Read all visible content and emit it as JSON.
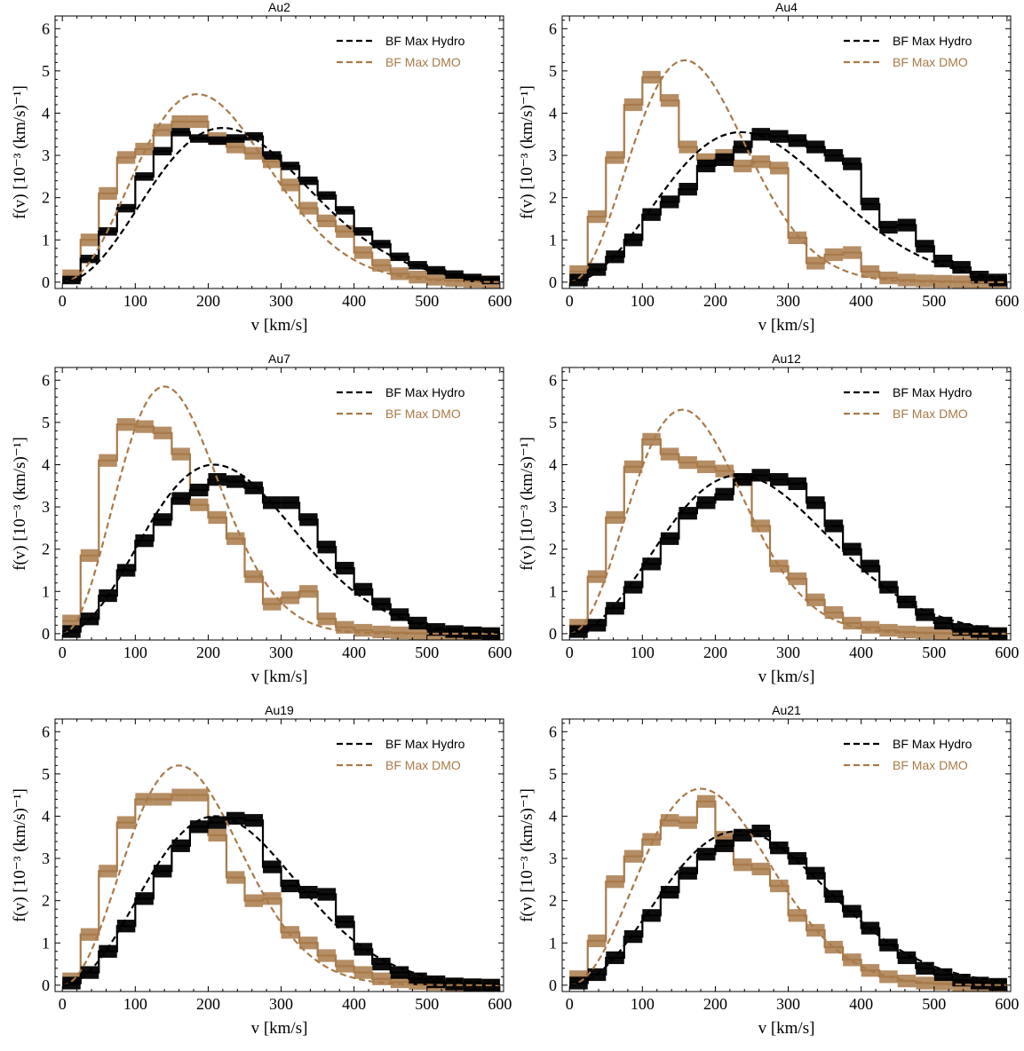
{
  "colors": {
    "hydro": "#000000",
    "dmo": "#a87a4a",
    "dmo_band": "#a87a4a",
    "frame": "#000000"
  },
  "legend": {
    "hydro_label": "BF Max Hydro",
    "dmo_label": "BF Max DMO",
    "placement": "top-right"
  },
  "axes": {
    "xlabel": "v [km/s]",
    "ylabel": "f(v) [10⁻³ (km/s)⁻¹]",
    "xlim": [
      -10,
      605
    ],
    "ylim": [
      -0.15,
      6.3
    ],
    "xticks": [
      0,
      100,
      200,
      300,
      400,
      500,
      600
    ],
    "yticks": [
      0,
      1,
      2,
      3,
      4,
      5,
      6
    ]
  },
  "chart_data": [
    {
      "type": "line",
      "title": "Au2",
      "bin_edges": [
        0,
        25,
        50,
        75,
        100,
        125,
        150,
        175,
        200,
        225,
        250,
        275,
        300,
        325,
        350,
        375,
        400,
        425,
        450,
        475,
        500,
        525,
        550,
        575,
        600
      ],
      "hydro_hist": [
        0.05,
        0.55,
        1.2,
        1.75,
        2.5,
        3.1,
        3.55,
        3.4,
        3.35,
        3.4,
        3.45,
        3.0,
        2.75,
        2.4,
        2.05,
        1.7,
        1.2,
        0.9,
        0.6,
        0.4,
        0.28,
        0.18,
        0.1,
        0.05
      ],
      "dmo_hist": [
        0.15,
        1.0,
        2.1,
        2.95,
        3.15,
        3.6,
        3.8,
        3.8,
        3.4,
        3.2,
        3.05,
        2.85,
        2.3,
        1.75,
        1.45,
        1.2,
        0.7,
        0.4,
        0.2,
        0.12,
        0.07,
        0.04,
        0.02,
        0.01
      ],
      "hydro_band": 0.2,
      "dmo_band": 0.3,
      "hydro_fit_peak_v": 220,
      "hydro_fit_peak_f": 3.65,
      "dmo_fit_peak_v": 185,
      "dmo_fit_peak_f": 4.45
    },
    {
      "type": "line",
      "title": "Au4",
      "bin_edges": [
        0,
        25,
        50,
        75,
        100,
        125,
        150,
        175,
        200,
        225,
        250,
        275,
        300,
        325,
        350,
        375,
        400,
        425,
        450,
        475,
        500,
        525,
        550,
        575,
        600
      ],
      "hydro_hist": [
        0.05,
        0.3,
        0.6,
        1.0,
        1.6,
        1.9,
        2.2,
        2.75,
        2.9,
        3.2,
        3.5,
        3.45,
        3.35,
        3.2,
        3.0,
        2.8,
        1.85,
        1.3,
        1.35,
        0.85,
        0.5,
        0.35,
        0.12,
        0.05
      ],
      "dmo_hist": [
        0.25,
        1.55,
        2.95,
        4.2,
        4.85,
        4.3,
        3.2,
        2.9,
        3.0,
        2.75,
        2.85,
        2.7,
        1.05,
        0.45,
        0.65,
        0.7,
        0.25,
        0.1,
        0.05,
        0.03,
        0.02,
        0.01,
        0.0,
        0.0
      ],
      "hydro_band": 0.3,
      "dmo_band": 0.3,
      "hydro_fit_peak_v": 235,
      "hydro_fit_peak_f": 3.55,
      "dmo_fit_peak_v": 158,
      "dmo_fit_peak_f": 5.25
    },
    {
      "type": "line",
      "title": "Au7",
      "bin_edges": [
        0,
        25,
        50,
        75,
        100,
        125,
        150,
        175,
        200,
        225,
        250,
        275,
        300,
        325,
        350,
        375,
        400,
        425,
        450,
        475,
        500,
        525,
        550,
        575,
        600
      ],
      "hydro_hist": [
        0.05,
        0.35,
        0.9,
        1.5,
        2.2,
        2.7,
        3.2,
        3.4,
        3.65,
        3.6,
        3.45,
        3.1,
        3.1,
        2.7,
        2.05,
        1.55,
        1.05,
        0.7,
        0.45,
        0.25,
        0.1,
        0.05,
        0.02,
        0.0
      ],
      "dmo_hist": [
        0.3,
        1.85,
        4.1,
        4.95,
        4.9,
        4.75,
        4.25,
        3.05,
        2.75,
        2.25,
        1.35,
        0.7,
        0.85,
        1.0,
        0.35,
        0.15,
        0.08,
        0.04,
        0.02,
        0.01,
        0.0,
        0.0,
        0.0,
        0.0
      ],
      "hydro_band": 0.3,
      "dmo_band": 0.3,
      "hydro_fit_peak_v": 208,
      "hydro_fit_peak_f": 4.0,
      "dmo_fit_peak_v": 140,
      "dmo_fit_peak_f": 5.85
    },
    {
      "type": "line",
      "title": "Au12",
      "bin_edges": [
        0,
        25,
        50,
        75,
        100,
        125,
        150,
        175,
        200,
        225,
        250,
        275,
        300,
        325,
        350,
        375,
        400,
        425,
        450,
        475,
        500,
        525,
        550,
        575,
        600
      ],
      "hydro_hist": [
        0.05,
        0.2,
        0.6,
        1.1,
        1.65,
        2.25,
        2.85,
        3.1,
        3.3,
        3.65,
        3.75,
        3.65,
        3.55,
        3.1,
        2.55,
        2.0,
        1.6,
        1.1,
        0.75,
        0.45,
        0.25,
        0.1,
        0.05,
        0.0
      ],
      "dmo_hist": [
        0.2,
        1.35,
        2.75,
        3.95,
        4.6,
        4.25,
        4.05,
        3.95,
        3.85,
        3.65,
        2.55,
        1.6,
        1.3,
        0.8,
        0.5,
        0.25,
        0.15,
        0.08,
        0.04,
        0.02,
        0.01,
        0.0,
        0.0,
        0.0
      ],
      "hydro_band": 0.3,
      "dmo_band": 0.3,
      "hydro_fit_peak_v": 232,
      "hydro_fit_peak_f": 3.75,
      "dmo_fit_peak_v": 155,
      "dmo_fit_peak_f": 5.3
    },
    {
      "type": "line",
      "title": "Au19",
      "bin_edges": [
        0,
        25,
        50,
        75,
        100,
        125,
        150,
        175,
        200,
        225,
        250,
        275,
        300,
        325,
        350,
        375,
        400,
        425,
        450,
        475,
        500,
        525,
        550,
        575,
        600
      ],
      "hydro_hist": [
        0.05,
        0.3,
        0.8,
        1.4,
        2.05,
        2.7,
        3.3,
        3.75,
        3.85,
        3.95,
        3.9,
        2.8,
        2.35,
        2.2,
        2.15,
        1.5,
        0.85,
        0.5,
        0.3,
        0.15,
        0.08,
        0.03,
        0.01,
        0.0
      ],
      "dmo_hist": [
        0.15,
        1.2,
        2.7,
        3.85,
        4.4,
        4.4,
        4.5,
        4.5,
        3.55,
        2.55,
        2.0,
        2.05,
        1.25,
        1.0,
        0.7,
        0.45,
        0.3,
        0.15,
        0.08,
        0.04,
        0.02,
        0.01,
        0.0,
        0.0
      ],
      "hydro_band": 0.3,
      "dmo_band": 0.3,
      "hydro_fit_peak_v": 210,
      "hydro_fit_peak_f": 4.0,
      "dmo_fit_peak_v": 160,
      "dmo_fit_peak_f": 5.2
    },
    {
      "type": "line",
      "title": "Au21",
      "bin_edges": [
        0,
        25,
        50,
        75,
        100,
        125,
        150,
        175,
        200,
        225,
        250,
        275,
        300,
        325,
        350,
        375,
        400,
        425,
        450,
        475,
        500,
        525,
        550,
        575,
        600
      ],
      "hydro_hist": [
        0.05,
        0.25,
        0.65,
        1.15,
        1.65,
        2.2,
        2.65,
        3.1,
        3.3,
        3.55,
        3.65,
        3.25,
        3.0,
        2.65,
        2.1,
        1.75,
        1.35,
        0.95,
        0.65,
        0.4,
        0.25,
        0.12,
        0.05,
        0.02
      ],
      "dmo_hist": [
        0.2,
        1.05,
        2.45,
        3.05,
        3.45,
        3.9,
        3.85,
        4.35,
        3.5,
        2.85,
        2.75,
        2.35,
        1.65,
        1.3,
        0.9,
        0.6,
        0.35,
        0.2,
        0.1,
        0.05,
        0.03,
        0.01,
        0.0,
        0.0
      ],
      "hydro_band": 0.3,
      "dmo_band": 0.3,
      "hydro_fit_peak_v": 232,
      "hydro_fit_peak_f": 3.65,
      "dmo_fit_peak_v": 180,
      "dmo_fit_peak_f": 4.65
    }
  ]
}
